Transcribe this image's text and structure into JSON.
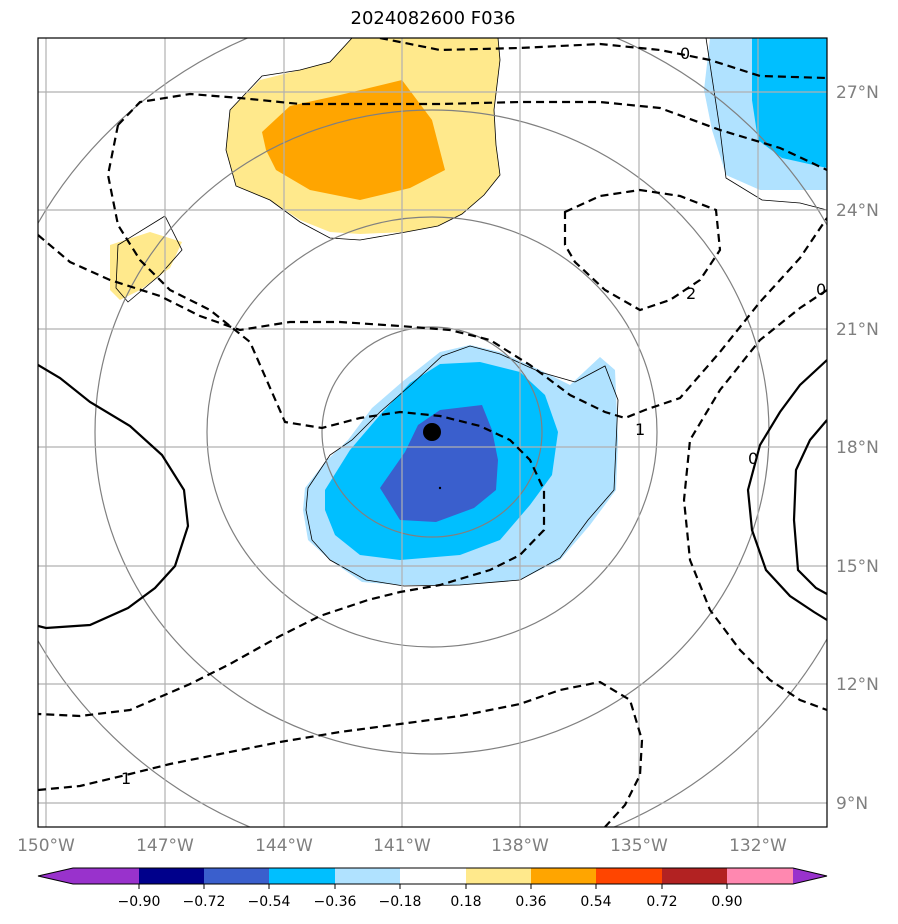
{
  "title": "2024082600 F036",
  "map": {
    "lon_labels": [
      "150°W",
      "147°W",
      "144°W",
      "141°W",
      "138°W",
      "135°W",
      "132°W"
    ],
    "lat_labels": [
      "27°N",
      "24°N",
      "21°N",
      "18°N",
      "15°N",
      "12°N",
      "9°N"
    ],
    "contour_labels": [
      "0",
      "2",
      "0",
      "1",
      "0",
      "1"
    ],
    "storm_center": {
      "lon": -140.3,
      "lat": 18.4
    }
  },
  "colorbar": {
    "ticks": [
      "−0.90",
      "−0.72",
      "−0.54",
      "−0.36",
      "−0.18",
      "0.18",
      "0.36",
      "0.54",
      "0.72",
      "0.90"
    ],
    "colors": [
      "#9932cc",
      "#00008b",
      "#3a5fcd",
      "#00bfff",
      "#b0e2ff",
      "#ffffff",
      "#ffe98c",
      "#ffa500",
      "#ff4500",
      "#b22222",
      "#ff88b0",
      "#9932cc"
    ]
  }
}
